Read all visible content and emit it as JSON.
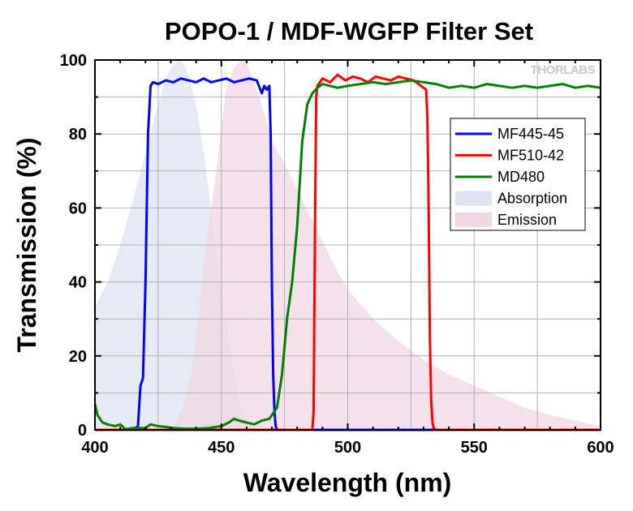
{
  "chart_data": {
    "type": "line",
    "title": "POPO-1 / MDF-WGFP Filter Set",
    "xlabel": "Wavelength (nm)",
    "ylabel": "Transmission (%)",
    "xlim": [
      400,
      600
    ],
    "ylim": [
      0,
      100
    ],
    "xticks": [
      400,
      450,
      500,
      550,
      600
    ],
    "yticks": [
      0,
      20,
      40,
      60,
      80,
      100
    ],
    "grid": true,
    "legend_position": "top-right",
    "logo_text": "THORLABS",
    "series": [
      {
        "name": "MF445-45",
        "kind": "line",
        "color": "#0000ff",
        "x": [
          400,
          415,
          417,
          418,
          419,
          420,
          421,
          422,
          423,
          425,
          428,
          431,
          434,
          437,
          440,
          443,
          446,
          449,
          452,
          455,
          458,
          461,
          464,
          466,
          467,
          468,
          469,
          469.5,
          470,
          470.5,
          471,
          471.5,
          472,
          600
        ],
        "y": [
          0,
          0,
          1,
          12,
          14,
          40,
          80,
          93,
          94,
          93.5,
          94.5,
          94,
          95,
          94.5,
          94,
          95,
          94,
          94.5,
          95,
          94,
          94.5,
          95,
          94.5,
          91,
          93,
          92,
          93,
          80,
          40,
          15,
          5,
          1,
          0,
          0
        ]
      },
      {
        "name": "MF510-42",
        "kind": "line",
        "color": "#ff0000",
        "x": [
          400,
          486,
          486.5,
          487,
          487.5,
          488,
          490,
          493,
          496,
          499,
          502,
          505,
          508,
          511,
          514,
          517,
          520,
          523,
          526,
          529,
          531,
          531.5,
          532,
          532.5,
          533,
          533.5,
          534,
          535,
          600
        ],
        "y": [
          0,
          0,
          5,
          50,
          90,
          93,
          95,
          94,
          96,
          94.5,
          95.5,
          95,
          94,
          95.5,
          95,
          94.5,
          95.5,
          95,
          94.5,
          93,
          92,
          85,
          60,
          25,
          8,
          2,
          0.5,
          0,
          0
        ]
      },
      {
        "name": "MD480",
        "kind": "line",
        "color": "#008000",
        "x": [
          400,
          401,
          403,
          405,
          408,
          410,
          412,
          415,
          418,
          420,
          422,
          425,
          428,
          431,
          435,
          440,
          445,
          450,
          453,
          455,
          457,
          460,
          463,
          466,
          469,
          472,
          474,
          476,
          478,
          480,
          482,
          484,
          486,
          488,
          490,
          493,
          496,
          500,
          505,
          510,
          515,
          520,
          525,
          530,
          535,
          540,
          545,
          550,
          555,
          560,
          565,
          570,
          575,
          580,
          585,
          590,
          595,
          600
        ],
        "y": [
          7,
          4,
          2,
          1.5,
          1,
          1.5,
          0.2,
          0.5,
          0.5,
          0.5,
          1.5,
          1,
          0.8,
          0.5,
          0.3,
          0.3,
          0.5,
          1,
          2,
          3,
          2.5,
          2,
          1.5,
          2.5,
          3,
          6,
          15,
          30,
          40,
          55,
          78,
          88,
          91,
          92.5,
          93.5,
          93,
          92.5,
          93,
          93.5,
          94,
          93.5,
          94,
          94.5,
          94,
          93.5,
          92.5,
          93,
          92.5,
          93.5,
          93,
          92.5,
          93,
          92.5,
          93,
          93.5,
          92.5,
          93,
          92.5
        ]
      },
      {
        "name": "Absorption",
        "kind": "area",
        "color": "#dde3f1",
        "x": [
          400,
          405,
          410,
          415,
          420,
          425,
          428,
          431,
          433,
          435,
          437,
          440,
          443,
          445,
          448,
          450,
          453,
          456,
          458,
          460,
          462,
          463,
          464,
          465
        ],
        "y": [
          33,
          40,
          50,
          62,
          75,
          88,
          95,
          99,
          100,
          99,
          96,
          88,
          75,
          65,
          48,
          38,
          24,
          12,
          6,
          3,
          1,
          0.5,
          0.2,
          0
        ]
      },
      {
        "name": "Emission",
        "kind": "area",
        "color": "#f0d7e2",
        "x": [
          430,
          432,
          435,
          438,
          440,
          442,
          445,
          448,
          450,
          452,
          455,
          458,
          460,
          462,
          465,
          468,
          470,
          475,
          480,
          485,
          490,
          495,
          500,
          510,
          520,
          530,
          540,
          550,
          560,
          570,
          580,
          590,
          600
        ],
        "y": [
          0,
          2,
          6,
          15,
          25,
          38,
          55,
          70,
          82,
          92,
          98,
          100,
          99,
          96,
          90,
          83,
          78,
          72,
          65,
          58,
          51,
          44,
          38,
          30,
          24,
          19,
          15,
          12,
          9,
          6,
          4,
          2.5,
          1
        ]
      }
    ]
  }
}
